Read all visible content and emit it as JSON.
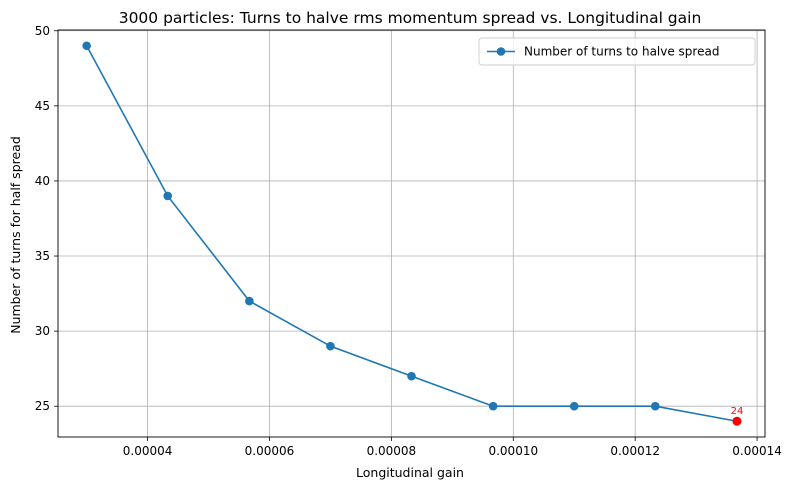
{
  "chart_data": {
    "type": "line",
    "title": "3000 particles: Turns to halve rms momentum spread vs. Longitudinal gain",
    "xlabel": "Longitudinal gain",
    "ylabel": "Number of turns for half spread",
    "xlim": [
      2.53e-05,
      0.0001413
    ],
    "ylim": [
      22.95,
      50.05
    ],
    "xticks": [
      {
        "value": 4e-05,
        "label": "0.00004"
      },
      {
        "value": 6e-05,
        "label": "0.00006"
      },
      {
        "value": 8e-05,
        "label": "0.00008"
      },
      {
        "value": 0.0001,
        "label": "0.00010"
      },
      {
        "value": 0.00012,
        "label": "0.00012"
      },
      {
        "value": 0.00014,
        "label": "0.00014"
      }
    ],
    "yticks": [
      {
        "value": 25,
        "label": "25"
      },
      {
        "value": 30,
        "label": "30"
      },
      {
        "value": 35,
        "label": "35"
      },
      {
        "value": 40,
        "label": "40"
      },
      {
        "value": 45,
        "label": "45"
      },
      {
        "value": 50,
        "label": "50"
      }
    ],
    "grid": true,
    "legend_position": "top-right",
    "series": [
      {
        "name": "Number of turns to halve spread",
        "color": "#1f77b4",
        "marker": "circle",
        "x": [
          3e-05,
          4.33e-05,
          5.67e-05,
          7e-05,
          8.33e-05,
          9.67e-05,
          0.00011,
          0.0001233,
          0.0001367
        ],
        "y": [
          49,
          39,
          32,
          29,
          27,
          25,
          25,
          25,
          24
        ]
      }
    ],
    "highlight": {
      "x": 0.0001367,
      "y": 24,
      "label": "24",
      "color": "#ff0000"
    }
  }
}
